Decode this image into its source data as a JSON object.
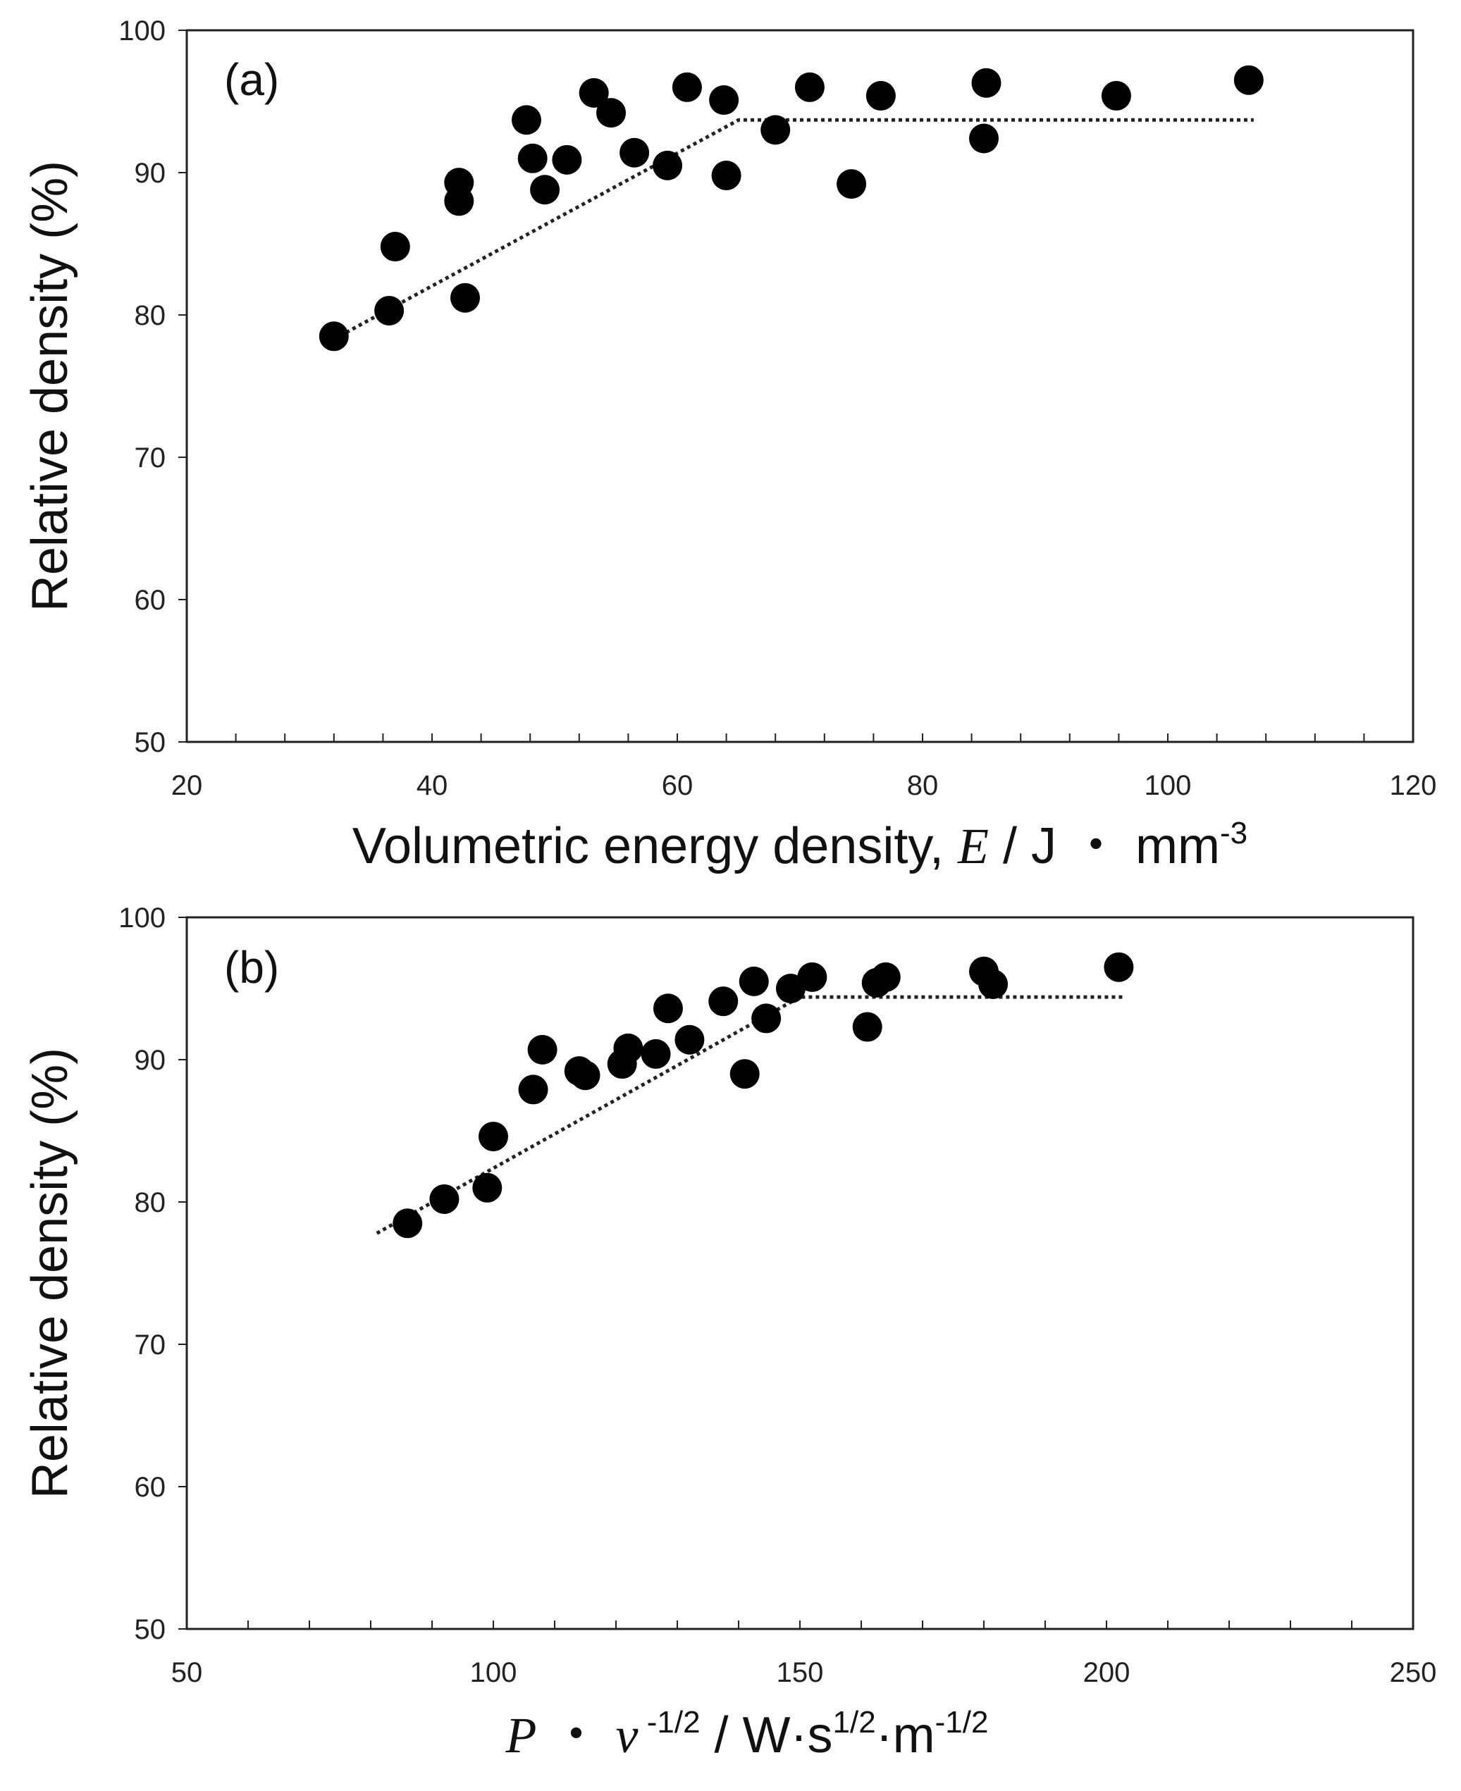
{
  "chart_data": [
    {
      "type": "scatter",
      "panel_label": "(a)",
      "xlabel_parts": {
        "text": "Volumetric energy density, ",
        "var": "E",
        "unit": " / J ・ mm",
        "sup": "-3"
      },
      "ylabel": "Relative density (%)",
      "xlim": [
        20,
        120
      ],
      "ylim": [
        50,
        100
      ],
      "xticks": [
        "20",
        "40",
        "60",
        "80",
        "100",
        "120"
      ],
      "yticks": [
        "50",
        "60",
        "70",
        "80",
        "90",
        "100"
      ],
      "x_minor_step": 4,
      "grid": false,
      "points": [
        [
          32.0,
          78.5
        ],
        [
          36.5,
          80.3
        ],
        [
          37.0,
          84.8
        ],
        [
          42.2,
          89.3
        ],
        [
          42.2,
          88.0
        ],
        [
          42.7,
          81.2
        ],
        [
          47.7,
          93.7
        ],
        [
          48.2,
          91.0
        ],
        [
          49.2,
          88.8
        ],
        [
          51.0,
          90.9
        ],
        [
          53.2,
          95.6
        ],
        [
          54.6,
          94.2
        ],
        [
          56.5,
          91.4
        ],
        [
          59.2,
          90.5
        ],
        [
          60.8,
          96.0
        ],
        [
          63.8,
          95.1
        ],
        [
          64.0,
          89.8
        ],
        [
          68.0,
          93.0
        ],
        [
          70.8,
          96.0
        ],
        [
          74.2,
          89.2
        ],
        [
          76.6,
          95.4
        ],
        [
          85.0,
          92.4
        ],
        [
          85.2,
          96.3
        ],
        [
          95.8,
          95.4
        ],
        [
          106.6,
          96.5
        ]
      ],
      "trend": [
        [
          32,
          78.3
        ],
        [
          65,
          93.7
        ],
        [
          107,
          93.7
        ]
      ]
    },
    {
      "type": "scatter",
      "panel_label": "(b)",
      "xlabel_parts": {
        "var1": "P",
        "dot": " ・ ",
        "var2": "v",
        "sup1": " -1/2",
        "unit1": " / W·s",
        "sup2": "1/2",
        "unit2": "·m",
        "sup3": "-1/2"
      },
      "ylabel": "Relative density (%)",
      "xlim": [
        50,
        250
      ],
      "ylim": [
        50,
        100
      ],
      "xticks": [
        "50",
        "100",
        "150",
        "200",
        "250"
      ],
      "yticks": [
        "50",
        "60",
        "70",
        "80",
        "90",
        "100"
      ],
      "x_minor_step": 10,
      "grid": false,
      "points": [
        [
          86.0,
          78.5
        ],
        [
          92.0,
          80.2
        ],
        [
          99.0,
          81.0
        ],
        [
          100.0,
          84.6
        ],
        [
          106.5,
          87.9
        ],
        [
          108.0,
          90.7
        ],
        [
          114.0,
          89.2
        ],
        [
          115.0,
          88.9
        ],
        [
          121.0,
          89.7
        ],
        [
          122.0,
          90.8
        ],
        [
          126.5,
          90.4
        ],
        [
          128.5,
          93.6
        ],
        [
          132.0,
          91.4
        ],
        [
          137.5,
          94.1
        ],
        [
          141.0,
          89.0
        ],
        [
          142.5,
          95.5
        ],
        [
          144.5,
          92.9
        ],
        [
          148.5,
          95.0
        ],
        [
          152.0,
          95.8
        ],
        [
          161.0,
          92.3
        ],
        [
          162.5,
          95.4
        ],
        [
          164.0,
          95.8
        ],
        [
          180.0,
          96.2
        ],
        [
          181.5,
          95.3
        ],
        [
          202.0,
          96.5
        ]
      ],
      "trend": [
        [
          81,
          77.8
        ],
        [
          150,
          94.4
        ],
        [
          203,
          94.4
        ]
      ]
    }
  ]
}
